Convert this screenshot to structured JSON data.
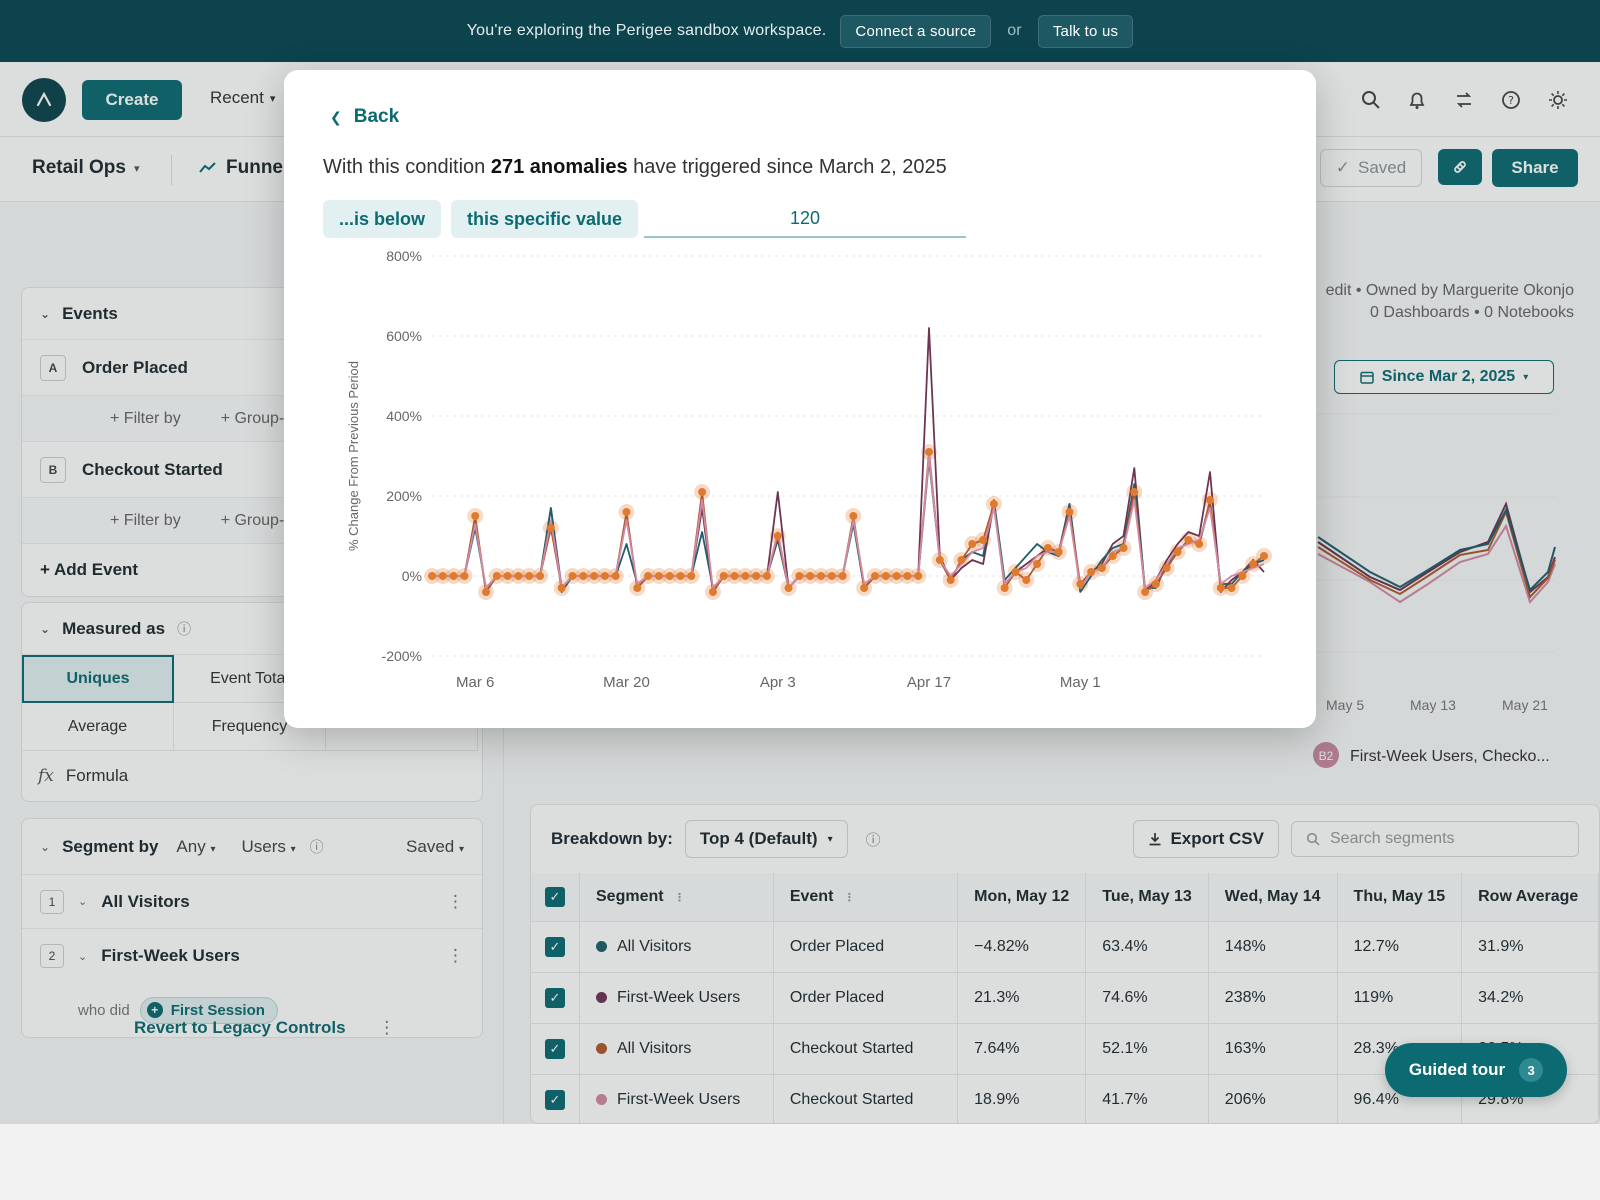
{
  "banner": {
    "text": "You're exploring the Perigee sandbox workspace.",
    "connect_button": "Connect a source",
    "or_text": "or",
    "talk_button": "Talk to us"
  },
  "nav": {
    "create_label": "Create",
    "recent_label": "Recent",
    "partial_link": "k"
  },
  "subbar": {
    "project_name": "Retail Ops",
    "report_type": "Funnel",
    "saved_label": "Saved",
    "share_label": "Share"
  },
  "events_panel": {
    "title": "Events",
    "events": [
      {
        "letter": "A",
        "name": "Order Placed"
      },
      {
        "letter": "B",
        "name": "Checkout Started"
      }
    ],
    "filter_label": "+ Filter by",
    "groupby_label": "+ Group-by",
    "add_event_label": "+ Add Event"
  },
  "measured_as": {
    "title": "Measured as",
    "options": [
      "Uniques",
      "Event Total",
      "Average",
      "Frequency"
    ],
    "selected": "Uniques",
    "formula_label": "Formula"
  },
  "segment_panel": {
    "title": "Segment by",
    "any_label": "Any",
    "users_label": "Users",
    "saved_label": "Saved",
    "segments": [
      {
        "num": "1",
        "name": "All Visitors"
      },
      {
        "num": "2",
        "name": "First-Week Users"
      }
    ],
    "who_did_label": "who did",
    "who_did_event": "First Session",
    "revert_label": "Revert to Legacy Controls"
  },
  "report_meta": {
    "line1": "edit • Owned by Marguerite Okonjo",
    "line2": "0 Dashboards • 0 Notebooks",
    "date_range": "Since Mar 2, 2025",
    "bg_x_labels": [
      "May 5",
      "May 13",
      "May 21"
    ],
    "legend_badge": "B2",
    "legend_text": "First-Week Users, Checko..."
  },
  "table": {
    "breakdown_label": "Breakdown by:",
    "breakdown_value": "Top 4 (Default)",
    "export_label": "Export CSV",
    "search_placeholder": "Search segments",
    "columns": [
      "Segment",
      "Event",
      "Mon, May 12",
      "Tue, May 13",
      "Wed, May 14",
      "Thu, May 15",
      "Row Average"
    ],
    "rows": [
      {
        "segment": "All Visitors",
        "event": "Order Placed",
        "color": "#1f5f6b",
        "values": [
          "−4.82%",
          "63.4%",
          "148%",
          "12.7%",
          "31.9%"
        ]
      },
      {
        "segment": "First-Week Users",
        "event": "Order Placed",
        "color": "#6e3553",
        "values": [
          "21.3%",
          "74.6%",
          "238%",
          "119%",
          "34.2%"
        ]
      },
      {
        "segment": "All Visitors",
        "event": "Checkout Started",
        "color": "#b05a2f",
        "values": [
          "7.64%",
          "52.1%",
          "163%",
          "28.3%",
          "26.5%"
        ]
      },
      {
        "segment": "First-Week Users",
        "event": "Checkout Started",
        "color": "#d48aa4",
        "values": [
          "18.9%",
          "41.7%",
          "206%",
          "96.4%",
          "29.8%"
        ]
      }
    ]
  },
  "guided_tour": {
    "label": "Guided tour",
    "badge": "3"
  },
  "modal": {
    "back_label": "Back",
    "condition_prefix": "With this condition",
    "condition_count": "271 anomalies",
    "condition_suffix": "have triggered since March 2, 2025",
    "chip_operator": "...is below",
    "chip_type": "this specific value",
    "threshold_value": "120"
  },
  "colors": {
    "primary": "#0c6b72",
    "banner": "#0c434d",
    "anomaly": "#e07b2e"
  },
  "chart_data": {
    "type": "line",
    "ylabel": "% Change From Previous Period",
    "ylim": [
      -200,
      800
    ],
    "yticks": [
      -200,
      0,
      200,
      400,
      600,
      800
    ],
    "ytick_labels": [
      "-200%",
      "0%",
      "200%",
      "400%",
      "600%",
      "800%"
    ],
    "xlim": [
      "2025-03-02",
      "2025-05-18"
    ],
    "xticks": [
      "2025-03-06",
      "2025-03-20",
      "2025-04-03",
      "2025-04-17",
      "2025-05-01"
    ],
    "xtick_labels": [
      "Mar 6",
      "Mar 20",
      "Apr 3",
      "Apr 17",
      "May 1"
    ],
    "grid": true,
    "x": [
      "2025-03-02",
      "2025-03-03",
      "2025-03-04",
      "2025-03-05",
      "2025-03-06",
      "2025-03-07",
      "2025-03-08",
      "2025-03-09",
      "2025-03-10",
      "2025-03-11",
      "2025-03-12",
      "2025-03-13",
      "2025-03-14",
      "2025-03-15",
      "2025-03-16",
      "2025-03-17",
      "2025-03-18",
      "2025-03-19",
      "2025-03-20",
      "2025-03-21",
      "2025-03-22",
      "2025-03-23",
      "2025-03-24",
      "2025-03-25",
      "2025-03-26",
      "2025-03-27",
      "2025-03-28",
      "2025-03-29",
      "2025-03-30",
      "2025-03-31",
      "2025-04-01",
      "2025-04-02",
      "2025-04-03",
      "2025-04-04",
      "2025-04-05",
      "2025-04-06",
      "2025-04-07",
      "2025-04-08",
      "2025-04-09",
      "2025-04-10",
      "2025-04-11",
      "2025-04-12",
      "2025-04-13",
      "2025-04-14",
      "2025-04-15",
      "2025-04-16",
      "2025-04-17",
      "2025-04-18",
      "2025-04-19",
      "2025-04-20",
      "2025-04-21",
      "2025-04-22",
      "2025-04-23",
      "2025-04-24",
      "2025-04-25",
      "2025-04-26",
      "2025-04-27",
      "2025-04-28",
      "2025-04-29",
      "2025-04-30",
      "2025-05-01",
      "2025-05-02",
      "2025-05-03",
      "2025-05-04",
      "2025-05-05",
      "2025-05-06",
      "2025-05-07",
      "2025-05-08",
      "2025-05-09",
      "2025-05-10",
      "2025-05-11",
      "2025-05-12",
      "2025-05-13",
      "2025-05-14",
      "2025-05-15",
      "2025-05-16",
      "2025-05-17",
      "2025-05-18"
    ],
    "series": [
      {
        "name": "First-Week Users, Order Placed",
        "color": "#6e3553",
        "values": [
          0,
          0,
          0,
          0,
          140,
          -40,
          0,
          0,
          0,
          0,
          0,
          170,
          -30,
          0,
          0,
          0,
          0,
          0,
          150,
          -30,
          0,
          0,
          0,
          0,
          0,
          170,
          -40,
          0,
          0,
          0,
          0,
          0,
          210,
          -30,
          0,
          0,
          0,
          0,
          0,
          140,
          -30,
          0,
          0,
          0,
          0,
          0,
          620,
          50,
          -10,
          20,
          40,
          30,
          180,
          -20,
          10,
          30,
          50,
          70,
          60,
          180,
          -30,
          10,
          30,
          80,
          100,
          270,
          -40,
          -10,
          40,
          80,
          110,
          100,
          260,
          -40,
          -10,
          10,
          40,
          10
        ]
      },
      {
        "name": "All Visitors, Order Placed",
        "color": "#1f5f6b",
        "values": [
          0,
          0,
          0,
          0,
          120,
          -30,
          0,
          0,
          0,
          0,
          0,
          170,
          -40,
          0,
          0,
          0,
          0,
          0,
          80,
          -20,
          0,
          0,
          0,
          0,
          0,
          110,
          -30,
          0,
          0,
          0,
          0,
          0,
          90,
          -30,
          0,
          0,
          0,
          0,
          0,
          130,
          -30,
          0,
          0,
          0,
          0,
          0,
          290,
          40,
          -10,
          40,
          60,
          50,
          190,
          -10,
          20,
          50,
          80,
          60,
          50,
          180,
          -40,
          0,
          40,
          70,
          80,
          230,
          -30,
          -30,
          30,
          60,
          90,
          80,
          180,
          -20,
          -20,
          10,
          30,
          40
        ]
      },
      {
        "name": "All Visitors, Checkout Started",
        "color": "#b05a2f",
        "values": [
          0,
          0,
          0,
          0,
          150,
          -40,
          0,
          0,
          0,
          0,
          0,
          120,
          -30,
          0,
          0,
          0,
          0,
          0,
          160,
          -30,
          0,
          0,
          0,
          0,
          0,
          210,
          -40,
          0,
          0,
          0,
          0,
          0,
          100,
          -30,
          0,
          0,
          0,
          0,
          0,
          150,
          -30,
          0,
          0,
          0,
          0,
          0,
          310,
          40,
          -10,
          40,
          80,
          90,
          180,
          -30,
          10,
          -10,
          30,
          70,
          60,
          160,
          -20,
          10,
          20,
          50,
          70,
          210,
          -40,
          -20,
          20,
          60,
          90,
          80,
          190,
          -30,
          -30,
          0,
          30,
          50
        ]
      },
      {
        "name": "First-Week Users, Checkout Started",
        "color": "#d48aa4",
        "values": [
          0,
          0,
          0,
          0,
          130,
          -30,
          0,
          0,
          0,
          0,
          0,
          140,
          -30,
          0,
          0,
          0,
          0,
          0,
          140,
          -20,
          0,
          0,
          0,
          0,
          0,
          190,
          -30,
          0,
          0,
          0,
          0,
          0,
          110,
          -30,
          0,
          0,
          0,
          0,
          0,
          140,
          -20,
          0,
          0,
          0,
          0,
          0,
          300,
          40,
          0,
          30,
          60,
          70,
          170,
          -20,
          10,
          20,
          50,
          60,
          60,
          150,
          -30,
          10,
          20,
          60,
          70,
          190,
          -30,
          -10,
          30,
          70,
          80,
          90,
          170,
          -20,
          0,
          10,
          20,
          30
        ]
      }
    ],
    "anomaly_series": "All Visitors, Checkout Started"
  }
}
